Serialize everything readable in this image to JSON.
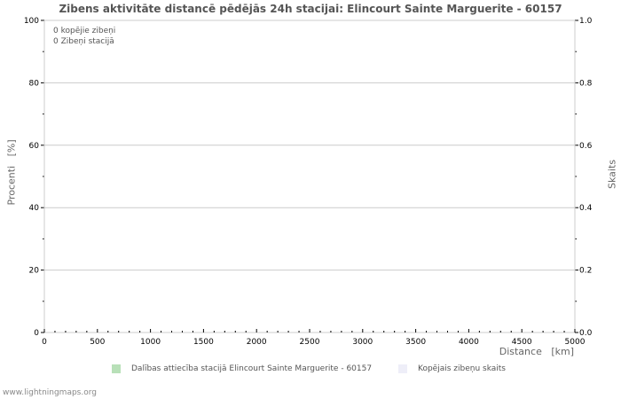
{
  "chart_data": {
    "type": "bar",
    "title": "Zibens aktivitāte distancē pēdējās 24h stacijai: Elincourt Sainte Marguerite - 60157",
    "xlabel": "Distance   [km]",
    "ylabel_left": "Procenti   [%]",
    "ylabel_right": "Skaits",
    "x_range": [
      0,
      5000
    ],
    "x_ticks": [
      "0",
      "500",
      "1000",
      "1500",
      "2000",
      "2500",
      "3000",
      "3500",
      "4000",
      "4500",
      "5000"
    ],
    "y_left_range": [
      0,
      100
    ],
    "y_left_ticks": [
      "0",
      "20",
      "40",
      "60",
      "80",
      "100"
    ],
    "y_right_range": [
      0.0,
      1.0
    ],
    "y_right_ticks": [
      "0.0",
      "0.2",
      "0.4",
      "0.6",
      "0.8",
      "1.0"
    ],
    "grid": true,
    "legend_position": "bottom",
    "series": [
      {
        "name": "Dalības attiecība stacijā Elincourt Sainte Marguerite - 60157",
        "color": "#b8e0b8",
        "values": []
      },
      {
        "name": "Kopējais zibeņu skaits",
        "color": "#eeeef8",
        "values": []
      }
    ],
    "annotations": [
      "0 kopējie zibeņi",
      "0 Zibeņi stacijā"
    ]
  },
  "footer": "www.lightningmaps.org"
}
